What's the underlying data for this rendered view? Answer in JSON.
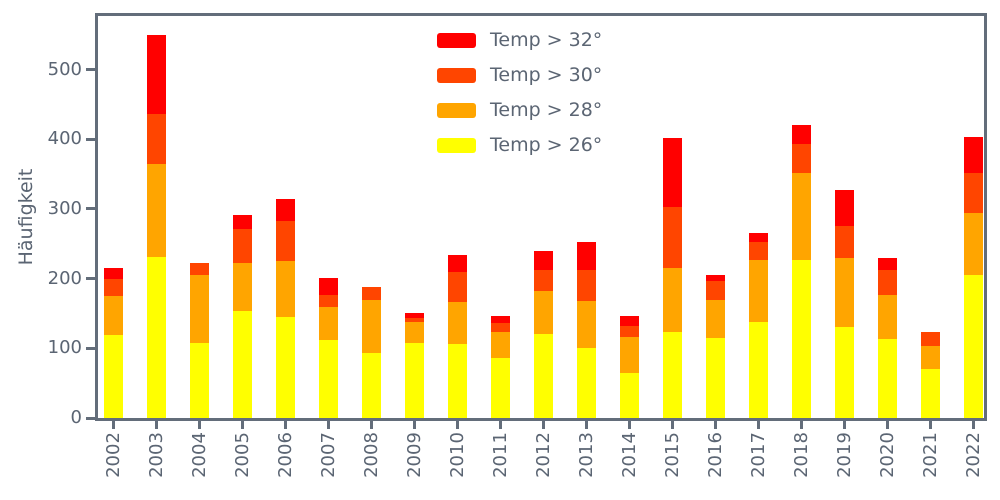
{
  "figure": {
    "background": "#ffffff",
    "text_color": "#5b6573",
    "axis_color": "#636d7a"
  },
  "y_axis": {
    "label": "Häufigkeit",
    "tick_labels": [
      "0",
      "100",
      "200",
      "300",
      "400",
      "500"
    ]
  },
  "legend": {
    "entries": [
      {
        "label": "Temp > 32°",
        "color": "#ff0000"
      },
      {
        "label": "Temp > 30°",
        "color": "#ff4500"
      },
      {
        "label": "Temp > 28°",
        "color": "#ffa500"
      },
      {
        "label": "Temp > 26°",
        "color": "#ffff00"
      }
    ]
  },
  "chart_data": {
    "type": "bar",
    "stacked": true,
    "title": "",
    "xlabel": "",
    "ylabel": "Häufigkeit",
    "categories": [
      "2002",
      "2003",
      "2004",
      "2005",
      "2006",
      "2007",
      "2008",
      "2009",
      "2010",
      "2011",
      "2012",
      "2013",
      "2014",
      "2015",
      "2016",
      "2017",
      "2018",
      "2019",
      "2020",
      "2021",
      "2022"
    ],
    "series": [
      {
        "name": "Temp > 26°",
        "color": "#ffff00",
        "values": [
          119,
          231,
          107,
          153,
          145,
          112,
          93,
          108,
          106,
          86,
          120,
          101,
          64,
          123,
          115,
          138,
          227,
          131,
          113,
          70,
          205
        ]
      },
      {
        "name": "Temp > 28°",
        "color": "#ffa500",
        "values": [
          56,
          133,
          98,
          69,
          80,
          48,
          77,
          30,
          60,
          37,
          62,
          67,
          53,
          93,
          54,
          89,
          124,
          99,
          64,
          33,
          89
        ]
      },
      {
        "name": "Temp > 30°",
        "color": "#ff4500",
        "values": [
          24,
          72,
          17,
          49,
          58,
          16,
          18,
          6,
          44,
          13,
          30,
          44,
          15,
          87,
          28,
          26,
          43,
          45,
          35,
          21,
          57
        ]
      },
      {
        "name": "Temp > 32°",
        "color": "#ff0000",
        "values": [
          17,
          114,
          0,
          20,
          31,
          25,
          0,
          7,
          24,
          10,
          28,
          41,
          14,
          99,
          9,
          12,
          26,
          52,
          17,
          0,
          52
        ]
      }
    ],
    "ylim": [
      0,
      577
    ],
    "yticks": [
      0,
      100,
      200,
      300,
      400,
      500
    ],
    "grid": false,
    "legend_position": "upper center",
    "bar_color_order_top_to_bottom": [
      "#ff0000",
      "#ff4500",
      "#ffa500",
      "#ffff00"
    ]
  }
}
